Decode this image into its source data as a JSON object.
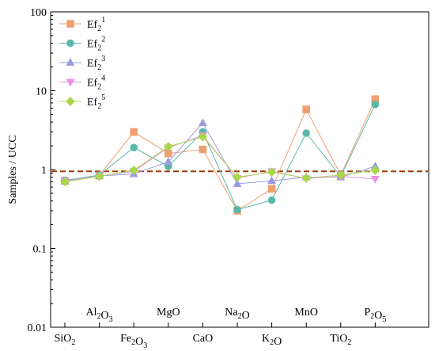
{
  "chart_data": {
    "type": "line",
    "ylabel": "Samples / UCC",
    "yscale": "log",
    "ylim": [
      0.01,
      100
    ],
    "yticks": [
      {
        "value": 0.01,
        "label": "0.01"
      },
      {
        "value": 0.1,
        "label": "0.1"
      },
      {
        "value": 1,
        "label": "1"
      },
      {
        "value": 10,
        "label": "10"
      },
      {
        "value": 100,
        "label": "100"
      }
    ],
    "categories": [
      {
        "label": "SiO2",
        "parts": [
          [
            "SiO",
            ""
          ],
          [
            "2",
            "sub"
          ]
        ],
        "row": "lower"
      },
      {
        "label": "Al2O3",
        "parts": [
          [
            "Al",
            ""
          ],
          [
            "2",
            "sub"
          ],
          [
            "O",
            ""
          ],
          [
            "3",
            "sub"
          ]
        ],
        "row": "upper"
      },
      {
        "label": "Fe2O3",
        "parts": [
          [
            "Fe",
            ""
          ],
          [
            "2",
            "sub"
          ],
          [
            "O",
            ""
          ],
          [
            "3",
            "sub"
          ]
        ],
        "row": "lower"
      },
      {
        "label": "MgO",
        "parts": [
          [
            "MgO",
            ""
          ]
        ],
        "row": "upper"
      },
      {
        "label": "CaO",
        "parts": [
          [
            "CaO",
            ""
          ]
        ],
        "row": "lower"
      },
      {
        "label": "Na2O",
        "parts": [
          [
            "Na",
            ""
          ],
          [
            "2",
            "sub"
          ],
          [
            "O",
            ""
          ]
        ],
        "row": "upper"
      },
      {
        "label": "K2O",
        "parts": [
          [
            "K",
            ""
          ],
          [
            "2",
            "sub"
          ],
          [
            "O",
            ""
          ]
        ],
        "row": "lower"
      },
      {
        "label": "MnO",
        "parts": [
          [
            "MnO",
            ""
          ]
        ],
        "row": "upper"
      },
      {
        "label": "TiO2",
        "parts": [
          [
            "TiO",
            ""
          ],
          [
            "2",
            "sub"
          ]
        ],
        "row": "lower"
      },
      {
        "label": "P2O5",
        "parts": [
          [
            "P",
            ""
          ],
          [
            "2",
            "sub"
          ],
          [
            "O",
            ""
          ],
          [
            "5",
            "sub"
          ]
        ],
        "row": "upper"
      }
    ],
    "reference_line": {
      "value": 0.95,
      "color": "#9a3a00",
      "style": "dashed"
    },
    "series": [
      {
        "name": "Ef2^1",
        "base": "Ef",
        "sub": "2",
        "sup": "1",
        "marker": "square",
        "color": "#f0a070",
        "values": [
          0.72,
          0.84,
          3.0,
          1.6,
          1.8,
          0.3,
          0.57,
          5.8,
          0.85,
          7.8
        ]
      },
      {
        "name": "Ef2^2",
        "base": "Ef",
        "sub": "2",
        "sup": "2",
        "marker": "circle",
        "color": "#5bb8a8",
        "values": [
          0.73,
          0.85,
          1.9,
          1.1,
          3.0,
          0.31,
          0.41,
          2.9,
          0.82,
          6.7
        ]
      },
      {
        "name": "Ef2^3",
        "base": "Ef",
        "sub": "2",
        "sup": "3",
        "marker": "triangle-up",
        "color": "#9b9be0",
        "values": [
          0.71,
          0.83,
          0.88,
          1.25,
          3.9,
          0.66,
          0.72,
          0.8,
          0.8,
          1.1
        ]
      },
      {
        "name": "Ef2^4",
        "base": "Ef",
        "sub": "2",
        "sup": "4",
        "marker": "triangle-down",
        "color": "#e890e0",
        "values": [
          0.72,
          0.83,
          0.95,
          1.9,
          2.7,
          0.78,
          0.95,
          0.77,
          0.82,
          0.76
        ]
      },
      {
        "name": "Ef2^5",
        "base": "Ef",
        "sub": "2",
        "sup": "5",
        "marker": "diamond",
        "color": "#a8d84a",
        "values": [
          0.7,
          0.82,
          0.98,
          1.95,
          2.6,
          0.8,
          0.93,
          0.78,
          0.85,
          0.98
        ]
      }
    ],
    "legend": {
      "position": "top-left"
    }
  }
}
